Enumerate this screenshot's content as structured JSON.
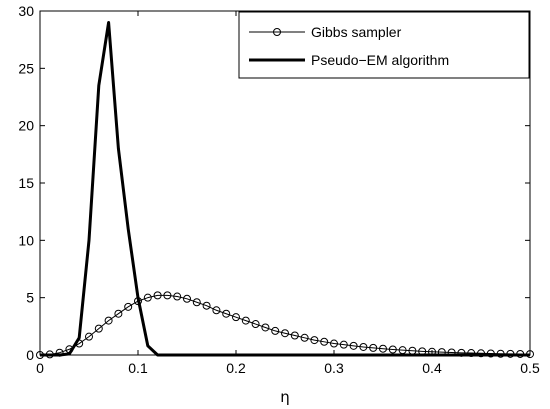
{
  "chart_data": {
    "type": "line",
    "title": "",
    "xlabel": "η",
    "ylabel": "",
    "xlim": [
      0,
      0.5
    ],
    "ylim": [
      0,
      30
    ],
    "xticks": [
      "0",
      "0.1",
      "0.2",
      "0.3",
      "0.4",
      "0.5"
    ],
    "yticks": [
      "0",
      "5",
      "10",
      "15",
      "20",
      "25",
      "30"
    ],
    "grid": false,
    "legend_position": "top-right",
    "series": [
      {
        "name": "Gibbs sampler",
        "style": "thin line with circle markers",
        "color": "#000000",
        "x": [
          0,
          0.01,
          0.02,
          0.03,
          0.04,
          0.05,
          0.06,
          0.07,
          0.08,
          0.09,
          0.1,
          0.11,
          0.12,
          0.13,
          0.14,
          0.15,
          0.16,
          0.17,
          0.18,
          0.19,
          0.2,
          0.21,
          0.22,
          0.23,
          0.24,
          0.25,
          0.26,
          0.27,
          0.28,
          0.29,
          0.3,
          0.31,
          0.32,
          0.33,
          0.34,
          0.35,
          0.36,
          0.37,
          0.38,
          0.39,
          0.4,
          0.41,
          0.42,
          0.43,
          0.44,
          0.45,
          0.46,
          0.47,
          0.48,
          0.49,
          0.5
        ],
        "y": [
          0,
          0.05,
          0.2,
          0.5,
          1.0,
          1.6,
          2.3,
          3.0,
          3.6,
          4.2,
          4.7,
          5.0,
          5.2,
          5.2,
          5.1,
          4.9,
          4.6,
          4.3,
          3.9,
          3.6,
          3.3,
          3.0,
          2.7,
          2.4,
          2.1,
          1.9,
          1.7,
          1.5,
          1.3,
          1.15,
          1.0,
          0.9,
          0.8,
          0.7,
          0.62,
          0.55,
          0.48,
          0.42,
          0.37,
          0.32,
          0.28,
          0.25,
          0.22,
          0.19,
          0.17,
          0.15,
          0.13,
          0.11,
          0.1,
          0.09,
          0.08
        ]
      },
      {
        "name": "Pseudo−EM algorithm",
        "style": "thick line",
        "color": "#000000",
        "x": [
          0,
          0.02,
          0.03,
          0.04,
          0.05,
          0.06,
          0.07,
          0.08,
          0.09,
          0.1,
          0.11,
          0.12,
          0.13,
          0.2,
          0.3,
          0.4,
          0.5
        ],
        "y": [
          0,
          0,
          0.1,
          1.5,
          10,
          23.5,
          29,
          18,
          11,
          5,
          0.8,
          0,
          0,
          0,
          0,
          0,
          0
        ]
      }
    ]
  }
}
